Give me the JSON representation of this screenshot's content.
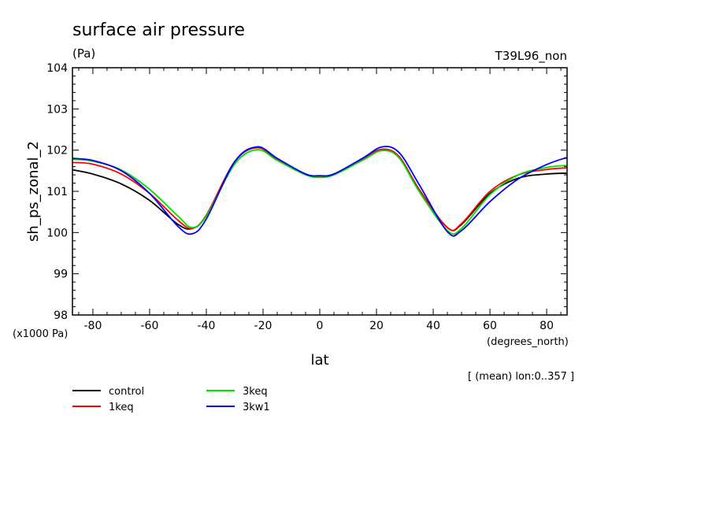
{
  "chart_data": {
    "type": "line",
    "title": "surface air pressure",
    "subtitle": "(Pa)",
    "experiment": "T39L96_non",
    "ylabel": "sh_ps_zonal_2",
    "yunit": "(x1000 Pa)",
    "xlabel": "lat",
    "xunit": "(degrees_north)",
    "note": "[ (mean) lon:0..357 ]",
    "xlim": [
      -87.2,
      87.2
    ],
    "ylim": [
      98,
      104
    ],
    "xticks": [
      -80,
      -60,
      -40,
      -20,
      0,
      20,
      40,
      60,
      80
    ],
    "xtick_labels": [
      "-80",
      "-60",
      "-40",
      "-20",
      "0",
      "20",
      "40",
      "60",
      "80"
    ],
    "yticks": [
      98,
      99,
      100,
      101,
      102,
      103,
      104
    ],
    "ytick_labels": [
      "98",
      "99",
      "100",
      "101",
      "102",
      "103",
      "104"
    ],
    "grid": false,
    "legend_position": "bottom-left",
    "x": [
      -87,
      -80,
      -70,
      -60,
      -50,
      -45,
      -40,
      -30,
      -22,
      -15,
      -5,
      0,
      5,
      15,
      22,
      28,
      35,
      45,
      50,
      60,
      70,
      80,
      87
    ],
    "series": [
      {
        "name": "control",
        "color": "#000000",
        "values": [
          101.52,
          101.42,
          101.18,
          100.78,
          100.2,
          100.1,
          100.42,
          101.72,
          102.06,
          101.78,
          101.42,
          101.37,
          101.42,
          101.78,
          102.02,
          101.84,
          101.05,
          100.12,
          100.2,
          100.95,
          101.32,
          101.42,
          101.44
        ]
      },
      {
        "name": "1keq",
        "color": "#ff0000",
        "values": [
          101.7,
          101.66,
          101.42,
          100.95,
          100.3,
          100.1,
          100.42,
          101.72,
          102.06,
          101.78,
          101.42,
          101.37,
          101.42,
          101.78,
          102.02,
          101.84,
          101.05,
          100.12,
          100.22,
          101.0,
          101.4,
          101.53,
          101.57
        ]
      },
      {
        "name": "3keq",
        "color": "#00dd00",
        "values": [
          101.78,
          101.73,
          101.52,
          101.05,
          100.4,
          100.12,
          100.4,
          101.66,
          102.01,
          101.75,
          101.4,
          101.34,
          101.4,
          101.75,
          101.99,
          101.81,
          101.0,
          100.05,
          100.1,
          100.92,
          101.4,
          101.58,
          101.63
        ]
      },
      {
        "name": "3kw1",
        "color": "#0000ff",
        "values": [
          101.8,
          101.75,
          101.5,
          100.95,
          100.15,
          99.97,
          100.33,
          101.72,
          102.08,
          101.8,
          101.42,
          101.38,
          101.42,
          101.8,
          102.08,
          101.94,
          101.17,
          100.02,
          100.05,
          100.75,
          101.3,
          101.65,
          101.82
        ]
      }
    ]
  }
}
